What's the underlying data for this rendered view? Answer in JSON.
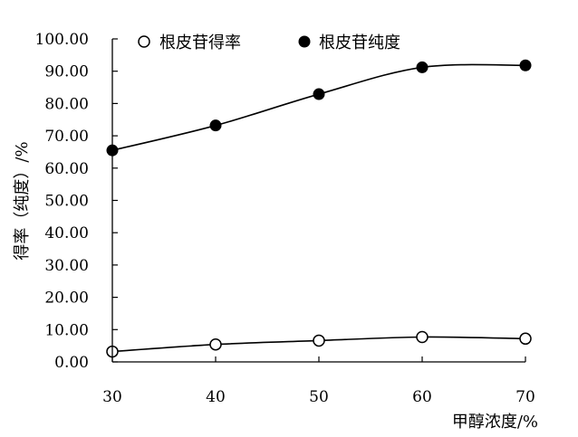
{
  "chart_data": {
    "type": "line",
    "x": [
      30,
      40,
      50,
      60,
      70
    ],
    "xlim": [
      30,
      70
    ],
    "xticks": [
      "30",
      "40",
      "50",
      "60",
      "70"
    ],
    "ylim": [
      0,
      100
    ],
    "yticks": [
      "0.00",
      "10.00",
      "20.00",
      "30.00",
      "40.00",
      "50.00",
      "60.00",
      "70.00",
      "80.00",
      "90.00",
      "100.00"
    ],
    "xlabel": "甲醇浓度/%",
    "ylabel": "得率（纯度）/%",
    "grid": false,
    "legend_position": "top",
    "smooth": true,
    "series": [
      {
        "name": "根皮苷得率",
        "marker": "open-circle",
        "color": "#000000",
        "values": [
          3.2,
          5.4,
          6.6,
          7.7,
          7.2
        ]
      },
      {
        "name": "根皮苷纯度",
        "marker": "filled-circle",
        "color": "#000000",
        "values": [
          65.5,
          73.2,
          82.9,
          91.2,
          91.8
        ]
      }
    ]
  }
}
